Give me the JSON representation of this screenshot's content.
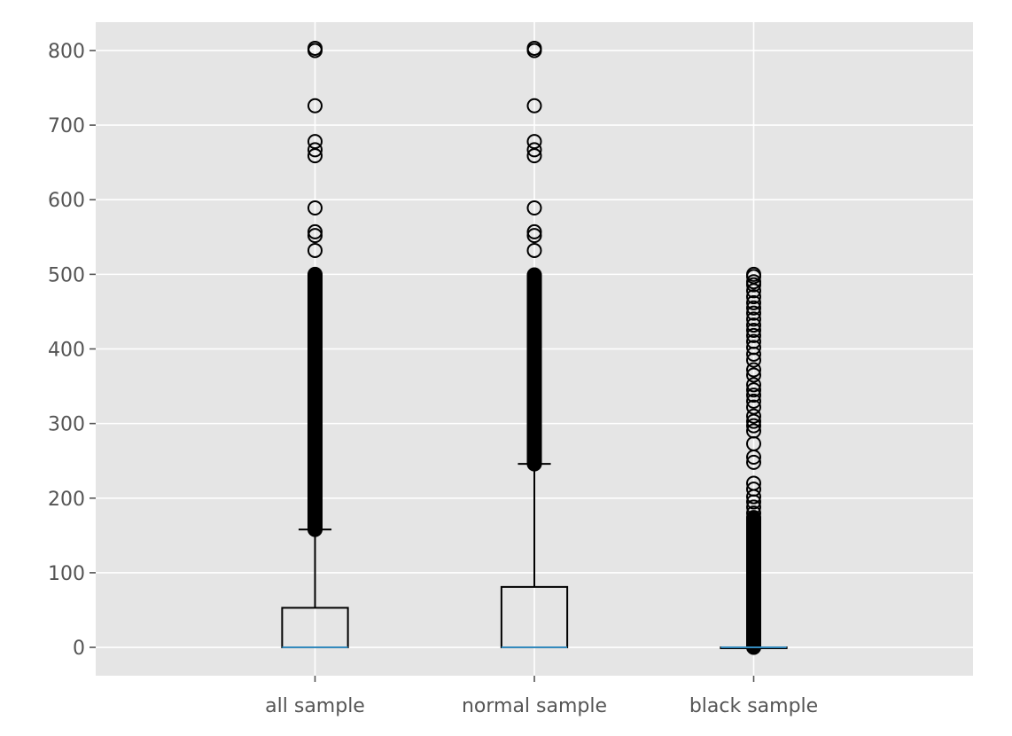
{
  "chart_data": {
    "type": "box",
    "title": "",
    "xlabel": "",
    "ylabel": "",
    "ylim": [
      -38,
      838
    ],
    "yticks": [
      0,
      100,
      200,
      300,
      400,
      500,
      600,
      700,
      800
    ],
    "grid": true,
    "style": "ggplot",
    "colors": {
      "background": "#E5E5E5",
      "grid": "#FFFFFF",
      "box": "#000000",
      "median": "#348ABD",
      "tick_text": "#555555"
    },
    "categories": [
      "all sample",
      "normal sample",
      "black sample"
    ],
    "boxes": [
      {
        "label": "all sample",
        "q1": 0,
        "median": 0,
        "q3": 53,
        "whisker_low": 0,
        "whisker_high": 158,
        "outliers_dense_range": [
          158,
          500
        ],
        "outliers": [
          532,
          552,
          557,
          589,
          659,
          667,
          678,
          726,
          800,
          803
        ]
      },
      {
        "label": "normal sample",
        "q1": 0,
        "median": 0,
        "q3": 81,
        "whisker_low": 0,
        "whisker_high": 246,
        "outliers_dense_range": [
          246,
          500
        ],
        "outliers": [
          532,
          552,
          557,
          589,
          659,
          667,
          678,
          726,
          800,
          803
        ]
      },
      {
        "label": "black sample",
        "q1": 0,
        "median": 0,
        "q3": 0,
        "whisker_low": 0,
        "whisker_high": 0,
        "outliers_dense_range": [
          0,
          175
        ],
        "outliers": [
          180,
          188,
          195,
          202,
          212,
          220,
          248,
          255,
          273,
          290,
          297,
          303,
          310,
          322,
          330,
          338,
          345,
          352,
          365,
          372,
          385,
          393,
          402,
          410,
          418,
          425,
          432,
          440,
          448,
          455,
          462,
          470,
          478,
          486,
          490,
          497,
          500
        ]
      }
    ]
  }
}
